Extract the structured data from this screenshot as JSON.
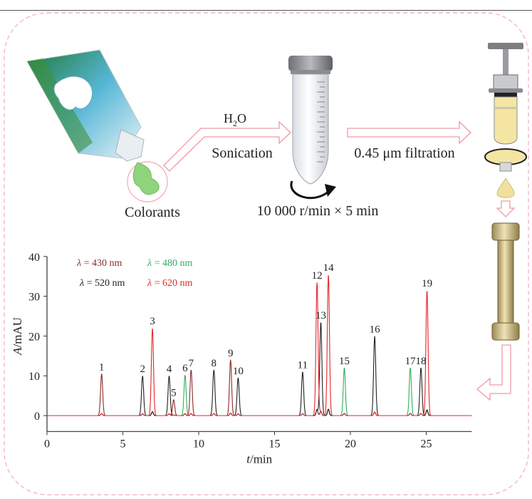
{
  "workflow": {
    "colorants_label": "Colorants",
    "h2o_prefix": "H",
    "h2o_sub": "2",
    "h2o_suffix": "O",
    "sonication_label": "Sonication",
    "centrifuge_label": "10 000 r/min × 5 min",
    "filtration_label": "0.45 μm filtration"
  },
  "legend": [
    {
      "sym": "λ",
      "text": " = 430 nm",
      "color": "#8b2a2a"
    },
    {
      "sym": "λ",
      "text": " = 480 nm",
      "color": "#2fae5a"
    },
    {
      "sym": "λ",
      "text": " = 520 nm",
      "color": "#222222"
    },
    {
      "sym": "λ",
      "text": " = 620 nm",
      "color": "#e3262b"
    }
  ],
  "chart_data": {
    "type": "line",
    "xlabel_var": "t",
    "xlabel_unit": "/min",
    "ylabel_var": "A",
    "ylabel_unit": "/mAU",
    "xlim": [
      0,
      28
    ],
    "ylim": [
      -4,
      40
    ],
    "x_ticks": [
      0,
      5,
      10,
      15,
      20,
      25
    ],
    "y_ticks": [
      0,
      10,
      20,
      30,
      40
    ],
    "colors": {
      "430": "#8b2a2a",
      "480": "#2fae5a",
      "520": "#222222",
      "620": "#e3262b"
    },
    "peaks": [
      {
        "label": "1",
        "t": 3.6,
        "h": 10.5,
        "trace": "430"
      },
      {
        "label": "2",
        "t": 6.3,
        "h": 10.0,
        "trace": "520"
      },
      {
        "label": "3",
        "t": 6.95,
        "h": 22.0,
        "trace": "620"
      },
      {
        "label": "4",
        "t": 8.05,
        "h": 10.0,
        "trace": "520"
      },
      {
        "label": "5",
        "t": 8.35,
        "h": 4.0,
        "trace": "430"
      },
      {
        "label": "6",
        "t": 9.1,
        "h": 10.2,
        "trace": "480"
      },
      {
        "label": "7",
        "t": 9.5,
        "h": 11.5,
        "trace": "430"
      },
      {
        "label": "8",
        "t": 11.0,
        "h": 11.5,
        "trace": "520"
      },
      {
        "label": "9",
        "t": 12.1,
        "h": 14.0,
        "trace": "430"
      },
      {
        "label": "10",
        "t": 12.6,
        "h": 9.5,
        "trace": "520"
      },
      {
        "label": "11",
        "t": 16.85,
        "h": 11.0,
        "trace": "520"
      },
      {
        "label": "12",
        "t": 17.8,
        "h": 33.5,
        "trace": "620"
      },
      {
        "label": "13",
        "t": 18.05,
        "h": 23.5,
        "trace": "520"
      },
      {
        "label": "14",
        "t": 18.55,
        "h": 35.5,
        "trace": "620"
      },
      {
        "label": "15",
        "t": 19.6,
        "h": 12.0,
        "trace": "480"
      },
      {
        "label": "16",
        "t": 21.6,
        "h": 20.0,
        "trace": "520"
      },
      {
        "label": "17",
        "t": 23.95,
        "h": 12.0,
        "trace": "480"
      },
      {
        "label": "18",
        "t": 24.65,
        "h": 12.0,
        "trace": "520"
      },
      {
        "label": "19",
        "t": 25.05,
        "h": 31.5,
        "trace": "620"
      }
    ]
  }
}
